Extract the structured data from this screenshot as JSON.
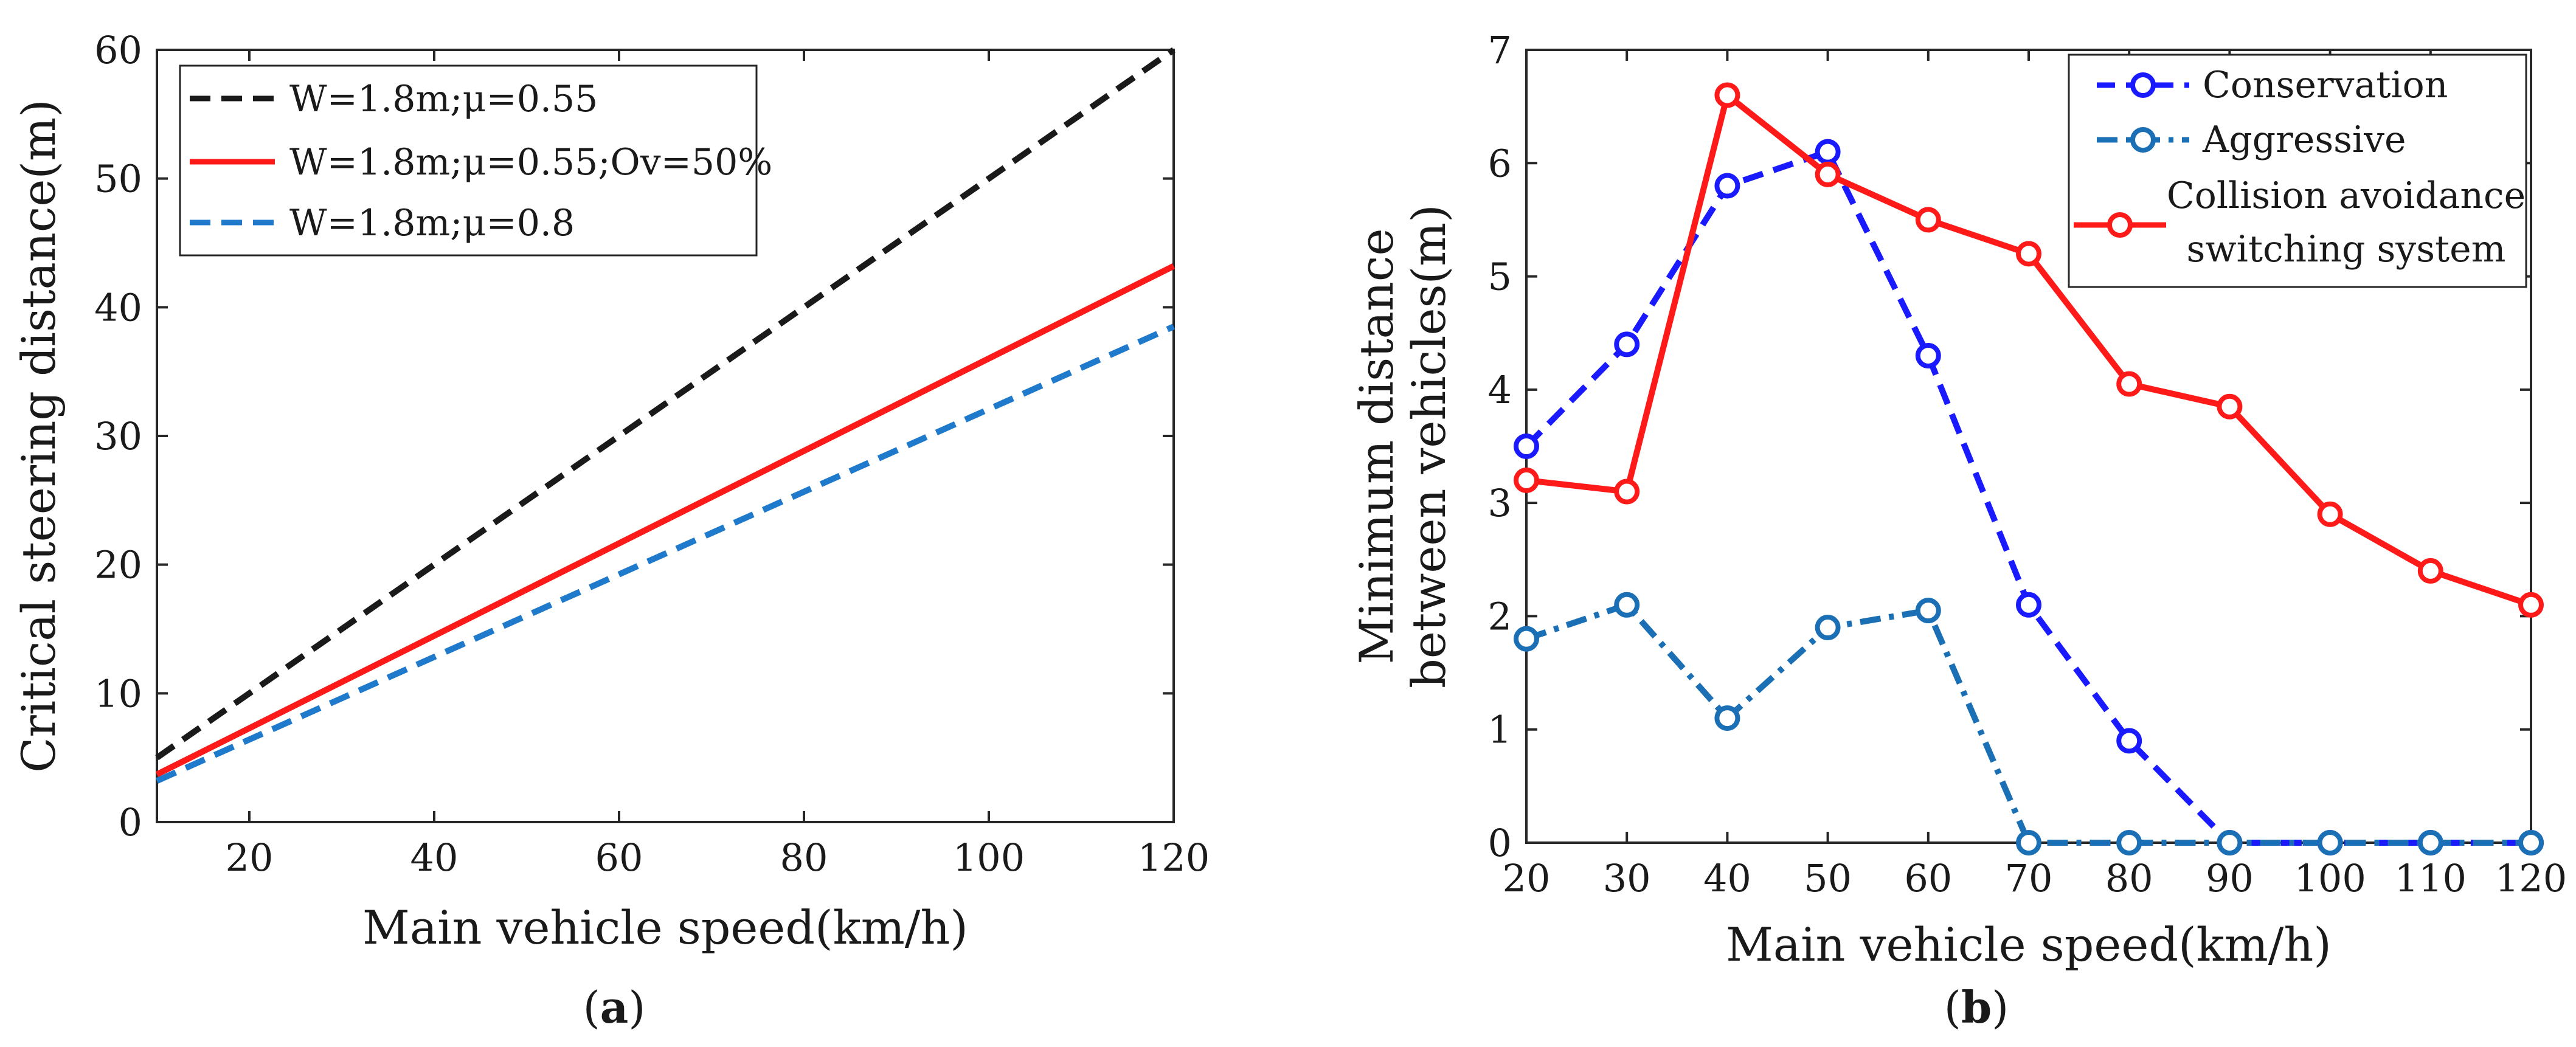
{
  "colors": {
    "black_dash": "#1a1a1a",
    "red": "#ff1a1a",
    "blue_dash": "#1f7acc",
    "conservation": "#1a1aff",
    "aggressive": "#1a6fb5"
  },
  "chart_data": [
    {
      "id": "a",
      "type": "line",
      "caption": {
        "open": "(",
        "letter": "a",
        "close": ")"
      },
      "xlabel": "Main vehicle speed(km/h)",
      "ylabel": "Critical steering distance(m)",
      "xlim": [
        10,
        120
      ],
      "ylim": [
        0,
        60
      ],
      "xticks": [
        20,
        40,
        60,
        80,
        100,
        120
      ],
      "yticks": [
        0,
        10,
        20,
        30,
        40,
        50,
        60
      ],
      "legend_position": "top-left",
      "series": [
        {
          "name": "W=1.8m;μ=0.55",
          "style": "dashed",
          "color": "#1a1a1a",
          "x": [
            10,
            120
          ],
          "y": [
            5,
            60
          ]
        },
        {
          "name": "W=1.8m;μ=0.55;Ov=50%",
          "style": "solid",
          "color": "#ff1a1a",
          "x": [
            10,
            120
          ],
          "y": [
            3.7,
            43.2
          ]
        },
        {
          "name": "W=1.8m;μ=0.8",
          "style": "dashed",
          "color": "#1f7acc",
          "x": [
            10,
            120
          ],
          "y": [
            3.2,
            38.5
          ]
        }
      ]
    },
    {
      "id": "b",
      "type": "line",
      "caption": {
        "open": "(",
        "letter": "b",
        "close": ")"
      },
      "xlabel": "Main vehicle speed(km/h)",
      "ylabel_lines": [
        "Minimum distance",
        "between vehicles(m)"
      ],
      "xlim": [
        20,
        120
      ],
      "ylim": [
        0,
        7
      ],
      "xticks": [
        20,
        30,
        40,
        50,
        60,
        70,
        80,
        90,
        100,
        110,
        120
      ],
      "yticks": [
        0,
        1,
        2,
        3,
        4,
        5,
        6,
        7
      ],
      "legend_position": "top-right",
      "x": [
        20,
        30,
        40,
        50,
        60,
        70,
        80,
        90,
        100,
        110,
        120
      ],
      "series": [
        {
          "name": "Conservation",
          "style": "dashed",
          "color": "#1a1aff",
          "y": [
            3.5,
            4.4,
            5.8,
            6.1,
            4.3,
            2.1,
            0.9,
            0,
            0,
            0,
            0
          ]
        },
        {
          "name": "Aggressive",
          "style": "dashdot",
          "color": "#1a6fb5",
          "y": [
            1.8,
            2.1,
            1.1,
            1.9,
            2.05,
            0,
            0,
            0,
            0,
            0,
            0
          ]
        },
        {
          "name_lines": [
            "Collision avoidance",
            "switching system"
          ],
          "style": "solid",
          "color": "#ff1a1a",
          "y": [
            3.2,
            3.1,
            6.6,
            5.9,
            5.5,
            5.2,
            4.05,
            3.85,
            2.9,
            2.4,
            2.1
          ]
        }
      ]
    }
  ]
}
